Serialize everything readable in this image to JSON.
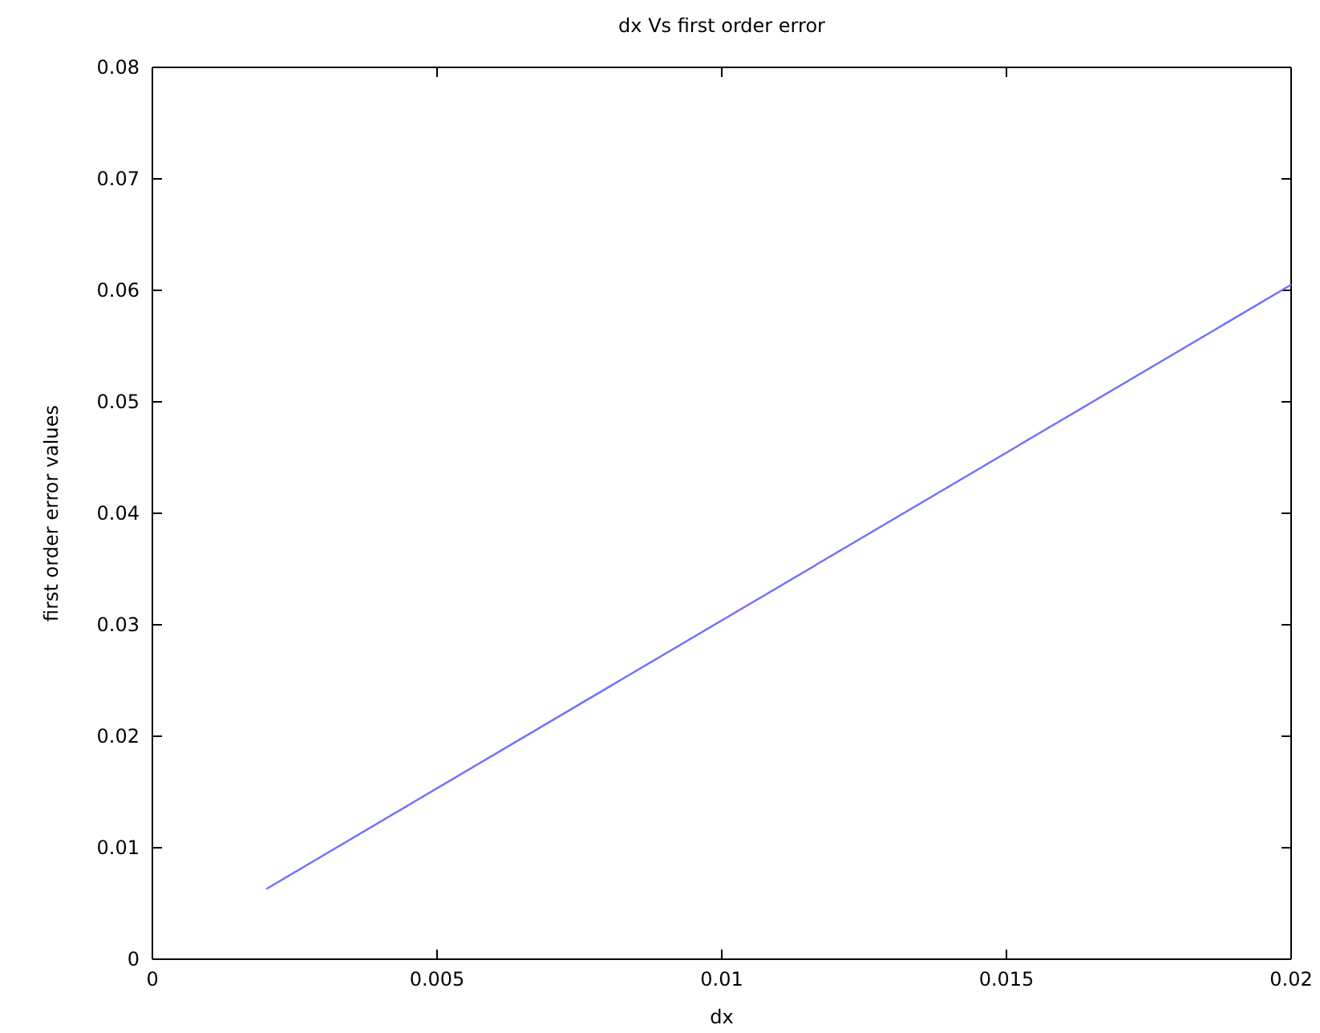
{
  "chart_data": {
    "type": "line",
    "title": "dx Vs first order error",
    "xlabel": "dx",
    "ylabel": "first order error values",
    "series": [
      {
        "color": "#6f6fff",
        "x": [
          0.002,
          0.02
        ],
        "values": [
          0.0063,
          0.0605
        ]
      }
    ],
    "xlim": [
      0,
      0.02
    ],
    "xticks": [
      0,
      0.005,
      0.01,
      0.015,
      0.02
    ],
    "ylim": [
      0,
      0.08
    ],
    "yticks": [
      0,
      0.01,
      0.02,
      0.03,
      0.04,
      0.05,
      0.06,
      0.07,
      0.08
    ],
    "grid": false,
    "marker": "none",
    "line_style": "solid"
  }
}
